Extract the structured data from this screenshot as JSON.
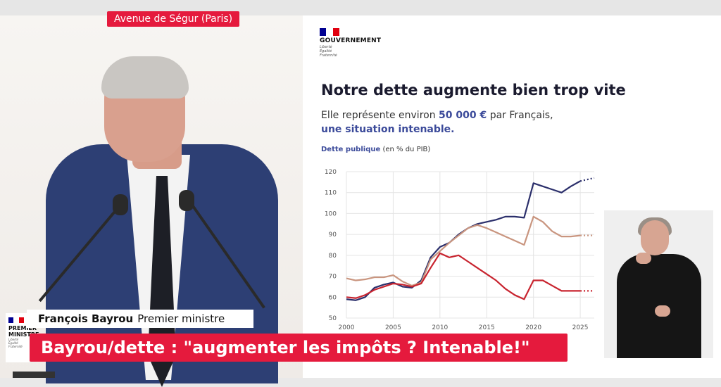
{
  "location_tag": "Avenue de Ségur (Paris)",
  "government": {
    "name": "GOUVERNEMENT",
    "motto": [
      "Liberté",
      "Égalité",
      "Fraternité"
    ],
    "flag_colors": [
      "#000091",
      "#ffffff",
      "#e1000f"
    ]
  },
  "slide": {
    "title": "Notre dette augmente bien trop vite",
    "subtitle_prefix": "Elle représente environ",
    "subtitle_amount": "50 000 €",
    "subtitle_suffix": "par Français,",
    "subtitle_line2": "une situation intenable."
  },
  "lower_third": {
    "speaker_name": "François Bayrou",
    "speaker_role": "Premier ministre",
    "headline": "Bayrou/dette : \"augmenter les impôts ? Intenable!\"",
    "bug_text": [
      "PREMIER",
      "MINISTRE"
    ]
  },
  "colors": {
    "accent_red": "#e51a3d",
    "series_navy": "#2b2f6b",
    "series_tan": "#c9957f",
    "series_red": "#c8242f"
  },
  "chart_data": {
    "type": "line",
    "ylabel_bold": "Dette publique",
    "ylabel_rest": "(en % du PIB)",
    "ylim": [
      50,
      120
    ],
    "yticks": [
      50,
      60,
      70,
      80,
      90,
      100,
      110,
      120
    ],
    "xlim": [
      2000,
      2026.5
    ],
    "xticks": [
      2000,
      2005,
      2010,
      2015,
      2020,
      2025
    ],
    "grid": true,
    "series": [
      {
        "color": "#2b2f6b",
        "x": [
          2000,
          2001,
          2002,
          2003,
          2004,
          2005,
          2006,
          2007,
          2008,
          2009,
          2010,
          2011,
          2012,
          2013,
          2014,
          2015,
          2016,
          2017,
          2018,
          2019,
          2020,
          2021,
          2022,
          2023,
          2024,
          2025
        ],
        "y": [
          59,
          58.5,
          60,
          64.5,
          66,
          67,
          65,
          64.5,
          68,
          79,
          84,
          86,
          90,
          93,
          95,
          96,
          97,
          98.5,
          98.5,
          98,
          114.5,
          113,
          111.5,
          110,
          113,
          115.5
        ],
        "projection": {
          "x": [
            2025,
            2026.5
          ],
          "y": [
            115.5,
            117
          ]
        }
      },
      {
        "color": "#c9957f",
        "x": [
          2000,
          2001,
          2002,
          2003,
          2004,
          2005,
          2006,
          2007,
          2008,
          2009,
          2010,
          2011,
          2012,
          2013,
          2014,
          2015,
          2016,
          2017,
          2018,
          2019,
          2020,
          2021,
          2022,
          2023,
          2024,
          2025
        ],
        "y": [
          69,
          68,
          68.5,
          69.5,
          69.5,
          70.5,
          67.5,
          65.5,
          67,
          78,
          82,
          86,
          89.5,
          93,
          94.5,
          93,
          91,
          89,
          87,
          85,
          98.5,
          96,
          91.5,
          89,
          89,
          89.5
        ],
        "projection": {
          "x": [
            2025,
            2026.5
          ],
          "y": [
            89.5,
            89.5
          ]
        }
      },
      {
        "color": "#c8242f",
        "x": [
          2000,
          2001,
          2002,
          2003,
          2004,
          2005,
          2006,
          2007,
          2008,
          2009,
          2010,
          2011,
          2012,
          2013,
          2014,
          2015,
          2016,
          2017,
          2018,
          2019,
          2020,
          2021,
          2022,
          2023,
          2024,
          2025
        ],
        "y": [
          60,
          59.5,
          61,
          63.5,
          65,
          66.5,
          66,
          65,
          66.5,
          74,
          81,
          79,
          80,
          77,
          74,
          71,
          68,
          64,
          61,
          59,
          68,
          68,
          65.5,
          63,
          63,
          63
        ],
        "projection": {
          "x": [
            2025,
            2026.5
          ],
          "y": [
            63,
            63
          ]
        }
      }
    ]
  }
}
